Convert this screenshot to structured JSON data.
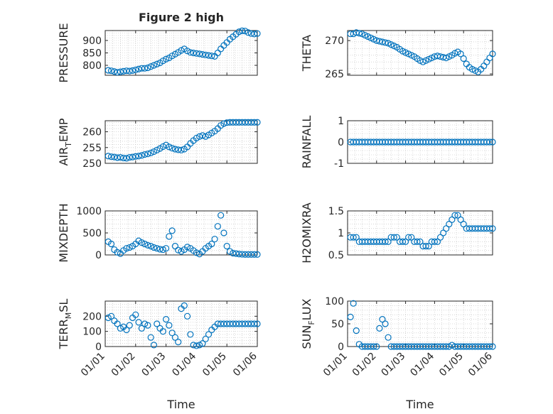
{
  "title": "Figure 2 high",
  "xlabel": "Time",
  "marker_color": "#0072BD",
  "x_ticks": [
    "01/01",
    "01/02",
    "01/03",
    "01/04",
    "01/05",
    "01/06"
  ],
  "chart_data": [
    {
      "type": "scatter",
      "id": "pressure",
      "title": "Figure 2 high",
      "ylabel": "PRESSURE",
      "ylim": [
        760,
        940
      ],
      "yticks": [
        800,
        850,
        900
      ],
      "xlim": [
        0,
        5
      ],
      "x": [
        0.1,
        0.2,
        0.3,
        0.4,
        0.5,
        0.6,
        0.7,
        0.8,
        0.9,
        1.0,
        1.1,
        1.2,
        1.3,
        1.4,
        1.5,
        1.6,
        1.7,
        1.8,
        1.9,
        2.0,
        2.1,
        2.2,
        2.3,
        2.4,
        2.5,
        2.6,
        2.7,
        2.8,
        2.9,
        3.0,
        3.1,
        3.2,
        3.3,
        3.4,
        3.5,
        3.6,
        3.7,
        3.8,
        3.9,
        4.0,
        4.1,
        4.2,
        4.3,
        4.4,
        4.5,
        4.6,
        4.7,
        4.8,
        4.9,
        5.0
      ],
      "y": [
        780,
        778,
        775,
        772,
        774,
        776,
        778,
        777,
        779,
        782,
        785,
        788,
        788,
        790,
        795,
        800,
        805,
        810,
        818,
        825,
        830,
        838,
        845,
        852,
        860,
        866,
        858,
        852,
        850,
        848,
        846,
        844,
        842,
        840,
        838,
        836,
        850,
        866,
        880,
        892,
        905,
        915,
        925,
        935,
        939,
        938,
        932,
        928,
        926,
        928
      ]
    },
    {
      "type": "scatter",
      "id": "theta",
      "title": "",
      "ylabel": "THETA",
      "ylim": [
        264.8,
        271.5
      ],
      "yticks": [
        265,
        270
      ],
      "xlim": [
        0,
        5
      ],
      "x": [
        0.1,
        0.2,
        0.3,
        0.4,
        0.5,
        0.6,
        0.7,
        0.8,
        0.9,
        1.0,
        1.1,
        1.2,
        1.3,
        1.4,
        1.5,
        1.6,
        1.7,
        1.8,
        1.9,
        2.0,
        2.1,
        2.2,
        2.3,
        2.4,
        2.5,
        2.6,
        2.7,
        2.8,
        2.9,
        3.0,
        3.1,
        3.2,
        3.3,
        3.4,
        3.5,
        3.6,
        3.7,
        3.8,
        3.9,
        4.0,
        4.1,
        4.2,
        4.3,
        4.4,
        4.5,
        4.6,
        4.7,
        4.8,
        4.9,
        5.0
      ],
      "y": [
        271,
        271,
        271.2,
        271.1,
        271,
        270.8,
        270.6,
        270.4,
        270.2,
        270,
        269.9,
        269.8,
        269.7,
        269.6,
        269.4,
        269.2,
        269,
        268.7,
        268.4,
        268.2,
        268,
        267.8,
        267.6,
        267.3,
        267,
        266.8,
        267,
        267.2,
        267.4,
        267.6,
        267.7,
        267.6,
        267.5,
        267.4,
        267.6,
        267.8,
        268.1,
        268.3,
        268,
        267.3,
        266.5,
        266,
        265.7,
        265.5,
        265.3,
        265.7,
        266.2,
        266.8,
        267.4,
        268
      ]
    },
    {
      "type": "scatter",
      "id": "air_temp",
      "title": "",
      "ylabel": "AIR",
      "ylabel_sub": "T",
      "ylabel_rest": "EMP",
      "ylim": [
        250,
        263.5
      ],
      "yticks": [
        250,
        255,
        260
      ],
      "xlim": [
        0,
        5
      ],
      "x": [
        0.1,
        0.2,
        0.3,
        0.4,
        0.5,
        0.6,
        0.7,
        0.8,
        0.9,
        1.0,
        1.1,
        1.2,
        1.3,
        1.4,
        1.5,
        1.6,
        1.7,
        1.8,
        1.9,
        2.0,
        2.1,
        2.2,
        2.3,
        2.4,
        2.5,
        2.6,
        2.7,
        2.8,
        2.9,
        3.0,
        3.1,
        3.2,
        3.3,
        3.4,
        3.5,
        3.6,
        3.7,
        3.8,
        3.9,
        4.0,
        4.1,
        4.2,
        4.3,
        4.4,
        4.5,
        4.6,
        4.7,
        4.8,
        4.9,
        5.0
      ],
      "y": [
        252.3,
        252.1,
        252,
        251.8,
        251.9,
        251.7,
        251.6,
        251.9,
        252,
        252.2,
        252.3,
        252.5,
        252.8,
        253,
        253.3,
        253.7,
        254.2,
        254.7,
        255.3,
        255.8,
        255.2,
        254.8,
        254.5,
        254.3,
        254.2,
        254.5,
        255.2,
        256.3,
        257.2,
        258,
        258.5,
        258.8,
        258.5,
        259,
        259.6,
        260.2,
        261,
        262,
        262.6,
        262.9,
        263,
        263,
        263,
        263,
        263,
        263,
        263,
        263,
        263,
        263
      ]
    },
    {
      "type": "scatter",
      "id": "rainfall",
      "title": "",
      "ylabel": "RAINFALL",
      "ylim": [
        -1,
        1
      ],
      "yticks": [
        -1,
        0,
        1
      ],
      "xlim": [
        0,
        5
      ],
      "x": [
        0.1,
        0.2,
        0.3,
        0.4,
        0.5,
        0.6,
        0.7,
        0.8,
        0.9,
        1.0,
        1.1,
        1.2,
        1.3,
        1.4,
        1.5,
        1.6,
        1.7,
        1.8,
        1.9,
        2.0,
        2.1,
        2.2,
        2.3,
        2.4,
        2.5,
        2.6,
        2.7,
        2.8,
        2.9,
        3.0,
        3.1,
        3.2,
        3.3,
        3.4,
        3.5,
        3.6,
        3.7,
        3.8,
        3.9,
        4.0,
        4.1,
        4.2,
        4.3,
        4.4,
        4.5,
        4.6,
        4.7,
        4.8,
        4.9,
        5.0
      ],
      "y": [
        0,
        0,
        0,
        0,
        0,
        0,
        0,
        0,
        0,
        0,
        0,
        0,
        0,
        0,
        0,
        0,
        0,
        0,
        0,
        0,
        0,
        0,
        0,
        0,
        0,
        0,
        0,
        0,
        0,
        0,
        0,
        0,
        0,
        0,
        0,
        0,
        0,
        0,
        0,
        0,
        0,
        0,
        0,
        0,
        0,
        0,
        0,
        0,
        0,
        0
      ]
    },
    {
      "type": "scatter",
      "id": "mixdepth",
      "title": "",
      "ylabel": "MIXDEPTH",
      "ylim": [
        0,
        1000
      ],
      "yticks": [
        0,
        500,
        1000
      ],
      "xlim": [
        0,
        5
      ],
      "x": [
        0.1,
        0.2,
        0.3,
        0.4,
        0.5,
        0.6,
        0.7,
        0.8,
        0.9,
        1.0,
        1.1,
        1.2,
        1.3,
        1.4,
        1.5,
        1.6,
        1.7,
        1.8,
        1.9,
        2.0,
        2.1,
        2.2,
        2.3,
        2.4,
        2.5,
        2.6,
        2.7,
        2.8,
        2.9,
        3.0,
        3.1,
        3.2,
        3.3,
        3.4,
        3.5,
        3.6,
        3.7,
        3.8,
        3.9,
        4.0,
        4.1,
        4.2,
        4.3,
        4.4,
        4.5,
        4.6,
        4.7,
        4.8,
        4.9,
        5.0
      ],
      "y": [
        300,
        250,
        120,
        60,
        30,
        100,
        150,
        170,
        200,
        250,
        320,
        280,
        250,
        220,
        200,
        170,
        150,
        130,
        120,
        150,
        420,
        550,
        200,
        110,
        80,
        120,
        180,
        150,
        100,
        50,
        20,
        80,
        150,
        200,
        250,
        360,
        650,
        900,
        500,
        200,
        80,
        40,
        30,
        20,
        15,
        10,
        10,
        10,
        10,
        10
      ]
    },
    {
      "type": "scatter",
      "id": "h2omixra",
      "title": "",
      "ylabel": "H2OMIXRA",
      "ylim": [
        0.5,
        1.5
      ],
      "yticks": [
        0.5,
        1,
        1.5
      ],
      "xlim": [
        0,
        5
      ],
      "x": [
        0.1,
        0.2,
        0.3,
        0.4,
        0.5,
        0.6,
        0.7,
        0.8,
        0.9,
        1.0,
        1.1,
        1.2,
        1.3,
        1.4,
        1.5,
        1.6,
        1.7,
        1.8,
        1.9,
        2.0,
        2.1,
        2.2,
        2.3,
        2.4,
        2.5,
        2.6,
        2.7,
        2.8,
        2.9,
        3.0,
        3.1,
        3.2,
        3.3,
        3.4,
        3.5,
        3.6,
        3.7,
        3.8,
        3.9,
        4.0,
        4.1,
        4.2,
        4.3,
        4.4,
        4.5,
        4.6,
        4.7,
        4.8,
        4.9,
        5.0
      ],
      "y": [
        0.9,
        0.9,
        0.9,
        0.8,
        0.8,
        0.8,
        0.8,
        0.8,
        0.8,
        0.8,
        0.8,
        0.8,
        0.8,
        0.8,
        0.9,
        0.9,
        0.9,
        0.8,
        0.8,
        0.8,
        0.9,
        0.9,
        0.8,
        0.8,
        0.8,
        0.7,
        0.7,
        0.7,
        0.8,
        0.8,
        0.8,
        0.9,
        1.0,
        1.1,
        1.2,
        1.3,
        1.4,
        1.4,
        1.3,
        1.2,
        1.1,
        1.1,
        1.1,
        1.1,
        1.1,
        1.1,
        1.1,
        1.1,
        1.1,
        1.1
      ]
    },
    {
      "type": "scatter",
      "id": "terr_msl",
      "title": "",
      "ylabel": "TERR",
      "ylabel_sub": "M",
      "ylabel_rest": "SL",
      "ylim": [
        0,
        300
      ],
      "yticks": [
        0,
        100,
        200
      ],
      "xlim": [
        0,
        5
      ],
      "x": [
        0.1,
        0.2,
        0.3,
        0.4,
        0.5,
        0.6,
        0.7,
        0.8,
        0.9,
        1.0,
        1.1,
        1.2,
        1.3,
        1.4,
        1.5,
        1.6,
        1.7,
        1.8,
        1.9,
        2.0,
        2.1,
        2.2,
        2.3,
        2.4,
        2.5,
        2.6,
        2.7,
        2.8,
        2.9,
        3.0,
        3.1,
        3.2,
        3.3,
        3.4,
        3.5,
        3.6,
        3.7,
        3.8,
        3.9,
        4.0,
        4.1,
        4.2,
        4.3,
        4.4,
        4.5,
        4.6,
        4.7,
        4.8,
        4.9,
        5.0
      ],
      "y": [
        190,
        200,
        170,
        150,
        120,
        130,
        110,
        140,
        190,
        210,
        160,
        120,
        150,
        140,
        60,
        10,
        150,
        120,
        100,
        180,
        140,
        90,
        60,
        30,
        250,
        270,
        200,
        80,
        10,
        5,
        10,
        20,
        50,
        80,
        110,
        130,
        150,
        150,
        150,
        150,
        150,
        150,
        150,
        150,
        150,
        150,
        150,
        150,
        150,
        150
      ]
    },
    {
      "type": "scatter",
      "id": "sun_flux",
      "title": "",
      "ylabel": "SUN",
      "ylabel_sub": "F",
      "ylabel_rest": "LUX",
      "ylim": [
        0,
        100
      ],
      "yticks": [
        0,
        50,
        100
      ],
      "xlim": [
        0,
        5
      ],
      "x": [
        0.1,
        0.2,
        0.3,
        0.4,
        0.5,
        0.6,
        0.7,
        0.8,
        0.9,
        1.0,
        1.1,
        1.2,
        1.3,
        1.4,
        1.5,
        1.6,
        1.7,
        1.8,
        1.9,
        2.0,
        2.1,
        2.2,
        2.3,
        2.4,
        2.5,
        2.6,
        2.7,
        2.8,
        2.9,
        3.0,
        3.1,
        3.2,
        3.3,
        3.4,
        3.5,
        3.6,
        3.7,
        3.8,
        3.9,
        4.0,
        4.1,
        4.2,
        4.3,
        4.4,
        4.5,
        4.6,
        4.7,
        4.8,
        4.9,
        5.0
      ],
      "y": [
        65,
        95,
        35,
        5,
        0,
        0,
        0,
        0,
        0,
        0,
        40,
        60,
        50,
        20,
        0,
        0,
        0,
        0,
        0,
        0,
        0,
        0,
        0,
        0,
        0,
        0,
        0,
        0,
        0,
        0,
        0,
        0,
        0,
        0,
        0,
        3,
        0,
        0,
        0,
        0,
        0,
        0,
        0,
        0,
        0,
        0,
        0,
        0,
        0,
        0
      ]
    }
  ]
}
